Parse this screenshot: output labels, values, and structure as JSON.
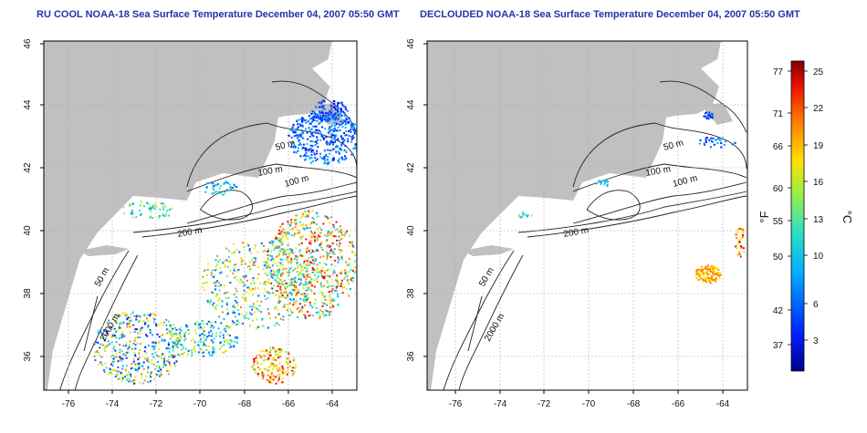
{
  "panels": {
    "left": {
      "title": "RU COOL NOAA-18 Sea Surface Temperature December 04, 2007 05:50 GMT",
      "contour_labels": [
        "50 m",
        "100 m",
        "100 m",
        "200 m",
        "50 m",
        "2000 m"
      ]
    },
    "right": {
      "title": "DECLOUDED NOAA-18 Sea Surface Temperature December 04, 2007 05:50 GMT",
      "contour_labels": [
        "50 m",
        "100 m",
        "100 m",
        "200 m",
        "50 m",
        "2000 m"
      ]
    }
  },
  "axes": {
    "x_ticks": [
      "-76",
      "-74",
      "-72",
      "-70",
      "-68",
      "-66",
      "-64"
    ],
    "y_ticks": [
      "36",
      "38",
      "40",
      "42",
      "44",
      "46"
    ]
  },
  "colorbar": {
    "unit_f": "°F",
    "unit_c": "°C",
    "f_ticks": [
      "77",
      "71",
      "66",
      "60",
      "55",
      "50",
      "42",
      "37"
    ],
    "c_ticks": [
      "25",
      "22",
      "19",
      "16",
      "13",
      "10",
      "6",
      "3"
    ]
  },
  "colors": {
    "land": "#c0c0c0",
    "title": "#2233aa",
    "grid": "#aaaaaa"
  }
}
